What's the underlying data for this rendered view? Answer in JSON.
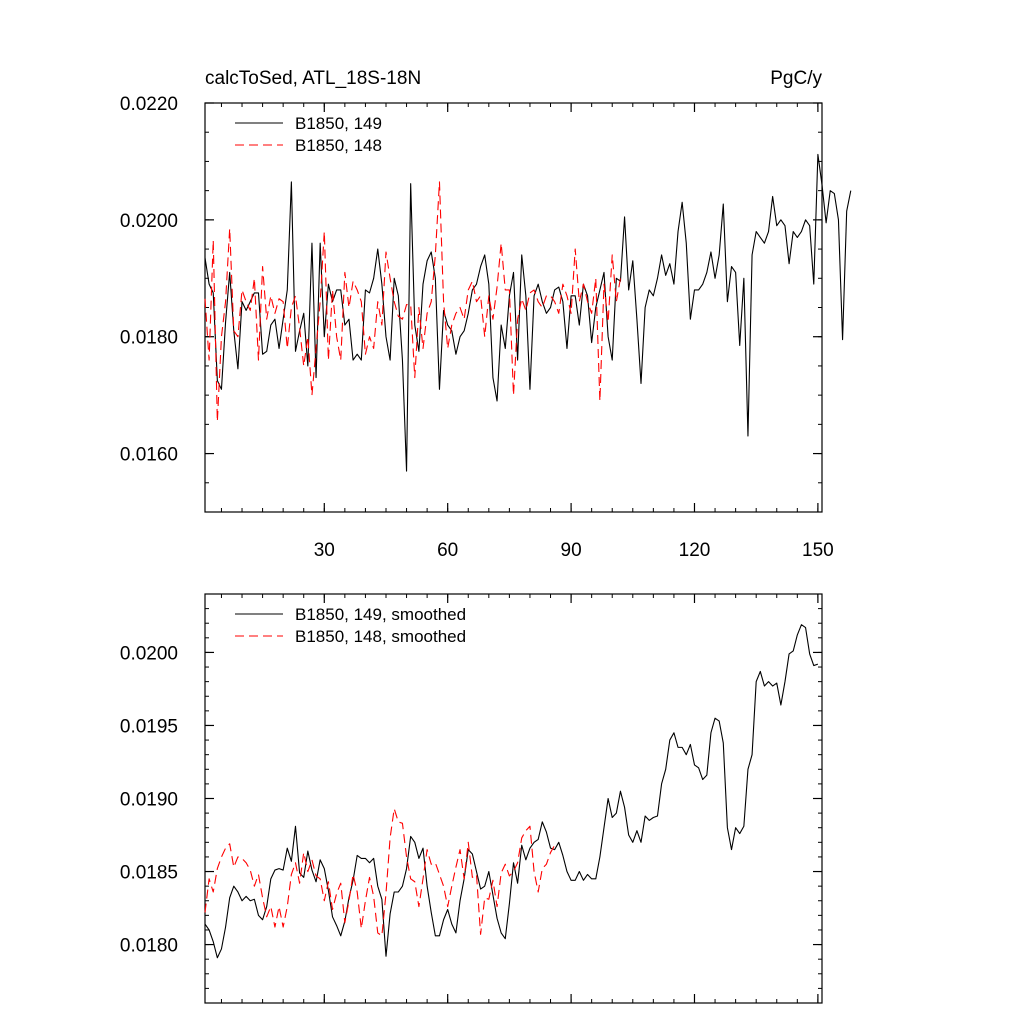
{
  "figure": {
    "title_left": "calcToSed, ATL_18S-18N",
    "title_right": "PgC/y"
  },
  "chart_data": [
    {
      "type": "line",
      "title": "calcToSed, ATL_18S-18N",
      "units": "PgC/y",
      "xlim": [
        1,
        151
      ],
      "ylim": [
        0.015,
        0.022
      ],
      "xticks": [
        30,
        60,
        90,
        120,
        150
      ],
      "xtick_labels": [
        "30",
        "60",
        "90",
        "120",
        "150"
      ],
      "yticks": [
        0.016,
        0.018,
        0.02,
        0.022
      ],
      "ytick_labels": [
        "0.0160",
        "0.0180",
        "0.0200",
        "0.0220"
      ],
      "legend_position": "top-left",
      "grid": false,
      "series": [
        {
          "name": "B1850, 149",
          "color": "#000000",
          "dash": "solid",
          "x_start": 1,
          "values": [
            0.01935,
            0.0189,
            0.01875,
            0.01725,
            0.0171,
            0.01825,
            0.0191,
            0.0181,
            0.01745,
            0.0186,
            0.01845,
            0.0186,
            0.01875,
            0.01875,
            0.0177,
            0.01775,
            0.0182,
            0.0183,
            0.0178,
            0.0183,
            0.0188,
            0.02065,
            0.01775,
            0.0181,
            0.0184,
            0.0175,
            0.0196,
            0.0173,
            0.0196,
            0.018,
            0.0189,
            0.0186,
            0.0188,
            0.0188,
            0.0182,
            0.0183,
            0.0176,
            0.0177,
            0.0176,
            0.0188,
            0.01875,
            0.019,
            0.0195,
            0.0189,
            0.018,
            0.0176,
            0.019,
            0.0187,
            0.0176,
            0.0157,
            0.02062,
            0.0182,
            0.01775,
            0.0189,
            0.0193,
            0.01945,
            0.019,
            0.0171,
            0.01845,
            0.0182,
            0.0181,
            0.0177,
            0.018,
            0.0181,
            0.0184,
            0.0188,
            0.0189,
            0.0192,
            0.0194,
            0.0189,
            0.0173,
            0.0169,
            0.0182,
            0.0178,
            0.0187,
            0.0191,
            0.0176,
            0.0194,
            0.0187,
            0.0171,
            0.0187,
            0.0189,
            0.0186,
            0.0184,
            0.0185,
            0.0188,
            0.01885,
            0.0186,
            0.0178,
            0.0187,
            0.0187,
            0.0182,
            0.0189,
            0.0187,
            0.0179,
            0.0185,
            0.0188,
            0.0191,
            0.018,
            0.0176,
            0.019,
            0.01895,
            0.02005,
            0.0188,
            0.0193,
            0.0183,
            0.0172,
            0.0185,
            0.0188,
            0.0187,
            0.019,
            0.0194,
            0.01905,
            0.01925,
            0.0189,
            0.0198,
            0.0203,
            0.0196,
            0.0183,
            0.0188,
            0.0188,
            0.0189,
            0.0191,
            0.01945,
            0.019,
            0.0194,
            0.02027,
            0.0186,
            0.0192,
            0.0191,
            0.01785,
            0.019,
            0.0163,
            0.0194,
            0.0198,
            0.0197,
            0.0196,
            0.0198,
            0.0204,
            0.0199,
            0.02,
            0.0199,
            0.01925,
            0.0198,
            0.0197,
            0.0198,
            0.02,
            0.0199,
            0.0189,
            0.02112,
            0.0206,
            0.01995,
            0.0205,
            0.02045,
            0.02,
            0.01795,
            0.02015,
            0.0205
          ],
          "values_note": ""
        },
        {
          "name": "B1850, 148",
          "color": "#ff0000",
          "dash": "dashed",
          "x_start": 1,
          "values": [
            0.01865,
            0.0176,
            0.01965,
            0.01655,
            0.018,
            0.0186,
            0.01985,
            0.0181,
            0.018,
            0.0188,
            0.0186,
            0.01845,
            0.019,
            0.0176,
            0.0192,
            0.0183,
            0.0187,
            0.0184,
            0.01865,
            0.0186,
            0.0178,
            0.0185,
            0.0187,
            0.01815,
            0.0175,
            0.018,
            0.017,
            0.0178,
            0.0186,
            0.0198,
            0.0176,
            0.0188,
            0.018,
            0.0176,
            0.0191,
            0.0185,
            0.01895,
            0.0188,
            0.0186,
            0.0177,
            0.018,
            0.0178,
            0.0186,
            0.0182,
            0.01945,
            0.019,
            0.0186,
            0.01835,
            0.0183,
            0.01855,
            0.01855,
            0.0173,
            0.0185,
            0.0178,
            0.0184,
            0.0186,
            0.0194,
            0.02065,
            0.0186,
            0.0178,
            0.0182,
            0.0184,
            0.0185,
            0.0183,
            0.0188,
            0.01895,
            0.0186,
            0.0187,
            0.018,
            0.0187,
            0.0183,
            0.01885,
            0.0196,
            0.0188,
            0.0188,
            0.017,
            0.0183,
            0.01865,
            0.01845,
            0.01875,
            0.0188,
            0.0186,
            0.0185,
            0.0187,
            0.0187,
            0.0186,
            0.0184,
            0.0189,
            0.0187,
            0.0184,
            0.0195,
            0.0186,
            0.0189,
            0.0186,
            0.0184,
            0.019,
            0.0169,
            0.0189,
            0.01825,
            0.0194,
            0.0186,
            0.019
          ],
          "values_note": ""
        }
      ]
    },
    {
      "type": "line",
      "xlim": [
        1,
        151
      ],
      "ylim": [
        0.0176,
        0.0204
      ],
      "xticks": [
        30,
        60,
        90,
        120,
        150
      ],
      "yticks": [
        0.018,
        0.0185,
        0.019,
        0.0195,
        0.02
      ],
      "ytick_labels": [
        "0.0180",
        "0.0185",
        "0.0190",
        "0.0195",
        "0.0200"
      ],
      "legend_position": "top-left",
      "grid": false,
      "series": [
        {
          "name": "B1850, 149, smoothed",
          "color": "#000000",
          "dash": "solid",
          "x_start": 1,
          "values": [
            0.01814,
            0.0181,
            0.01802,
            0.01791,
            0.01797,
            0.01812,
            0.01832,
            0.0184,
            0.01836,
            0.0183,
            0.01833,
            0.0183,
            0.01831,
            0.0182,
            0.01817,
            0.01826,
            0.01845,
            0.01851,
            0.01852,
            0.01851,
            0.01866,
            0.01857,
            0.01881,
            0.01849,
            0.01846,
            0.01864,
            0.01851,
            0.01843,
            0.01858,
            0.01852,
            0.01837,
            0.01819,
            0.01813,
            0.01806,
            0.01816,
            0.01832,
            0.01844,
            0.01861,
            0.01859,
            0.01859,
            0.01856,
            0.01859,
            0.0184,
            0.01831,
            0.01792,
            0.01821,
            0.01836,
            0.01836,
            0.0184,
            0.01852,
            0.01874,
            0.0187,
            0.01859,
            0.01866,
            0.0184,
            0.01822,
            0.01806,
            0.01806,
            0.01817,
            0.01824,
            0.01814,
            0.01808,
            0.0183,
            0.01845,
            0.01865,
            0.01862,
            0.0185,
            0.01838,
            0.0184,
            0.0185,
            0.01834,
            0.01818,
            0.01808,
            0.01804,
            0.01828,
            0.01856,
            0.01842,
            0.01868,
            0.01858,
            0.01866,
            0.0187,
            0.01872,
            0.01884,
            0.01877,
            0.01866,
            0.01865,
            0.0187,
            0.01861,
            0.0185,
            0.01844,
            0.01844,
            0.0185,
            0.01844,
            0.01848,
            0.01845,
            0.01845,
            0.0186,
            0.0188,
            0.019,
            0.01887,
            0.0189,
            0.01905,
            0.01894,
            0.01875,
            0.0187,
            0.01878,
            0.0187,
            0.01888,
            0.01885,
            0.01887,
            0.01888,
            0.0191,
            0.0192,
            0.0194,
            0.01945,
            0.01935,
            0.01935,
            0.0193,
            0.01937,
            0.01923,
            0.01921,
            0.01913,
            0.01916,
            0.01945,
            0.01955,
            0.01953,
            0.01938,
            0.0188,
            0.01865,
            0.0188,
            0.01876,
            0.01881,
            0.0192,
            0.0193,
            0.0198,
            0.01987,
            0.01977,
            0.0198,
            0.01977,
            0.01979,
            0.01964,
            0.0198,
            0.01999,
            0.02001,
            0.02012,
            0.02019,
            0.02017,
            0.01999,
            0.01991,
            0.01992
          ],
          "values_note": ""
        },
        {
          "name": "B1850, 148, smoothed",
          "color": "#ff0000",
          "dash": "dashed",
          "x_start": 1,
          "values": [
            0.01822,
            0.01845,
            0.01836,
            0.01852,
            0.0186,
            0.01866,
            0.01869,
            0.01853,
            0.0186,
            0.01859,
            0.01856,
            0.01851,
            0.0184,
            0.01848,
            0.01832,
            0.01819,
            0.01826,
            0.01812,
            0.01826,
            0.01812,
            0.01826,
            0.01848,
            0.01856,
            0.01842,
            0.01863,
            0.0185,
            0.01858,
            0.01847,
            0.01845,
            0.0183,
            0.01843,
            0.01824,
            0.01835,
            0.01842,
            0.01815,
            0.0183,
            0.01848,
            0.01836,
            0.01811,
            0.0183,
            0.01846,
            0.01833,
            0.01808,
            0.01806,
            0.01835,
            0.01873,
            0.01893,
            0.01884,
            0.01883,
            0.0186,
            0.01845,
            0.01843,
            0.01826,
            0.01845,
            0.01865,
            0.01855,
            0.01856,
            0.01848,
            0.0184,
            0.01826,
            0.0184,
            0.01853,
            0.01865,
            0.01845,
            0.0187,
            0.01846,
            0.01848,
            0.01807,
            0.01832,
            0.01831,
            0.01844,
            0.01826,
            0.01849,
            0.01855,
            0.01847,
            0.0185,
            0.01856,
            0.01873,
            0.01878,
            0.01881,
            0.0185,
            0.01836,
            0.01852,
            0.01855,
            0.01863,
            0.01868
          ],
          "values_note": ""
        }
      ]
    }
  ]
}
